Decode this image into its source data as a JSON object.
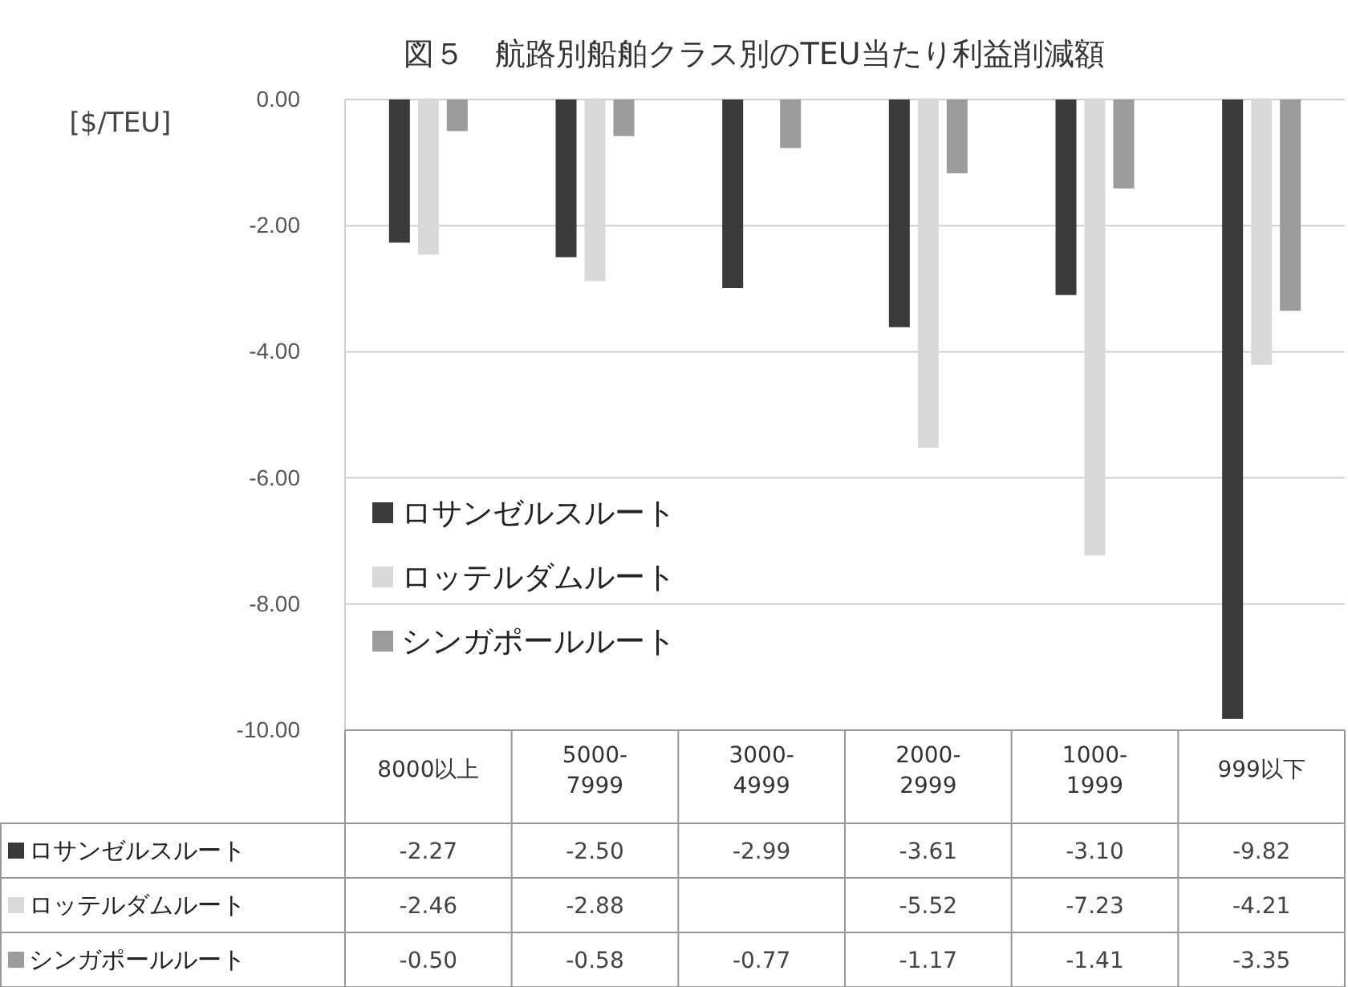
{
  "chart_data": {
    "type": "bar",
    "title": "図５　航路別船舶クラス別のTEU当たり利益削減額",
    "ylabel": "[$/TEU]",
    "categories": [
      "8000以上",
      "5000-7999",
      "3000-4999",
      "2000-2999",
      "1000-1999",
      "999以下"
    ],
    "series": [
      {
        "name": "ロサンゼルスルート",
        "color": "#3a3a3a",
        "values": [
          -2.27,
          -2.5,
          -2.99,
          -3.61,
          -3.1,
          -9.82
        ],
        "value_labels": [
          "-2.27",
          "-2.50",
          "-2.99",
          "-3.61",
          "-3.10",
          "-9.82"
        ]
      },
      {
        "name": "ロッテルダムルート",
        "color": "#d9d9d9",
        "values": [
          -2.46,
          -2.88,
          null,
          -5.52,
          -7.23,
          -4.21
        ],
        "value_labels": [
          "-2.46",
          "-2.88",
          null,
          "-5.52",
          "-7.23",
          "-4.21"
        ]
      },
      {
        "name": "シンガポールルート",
        "color": "#9c9c9c",
        "values": [
          -0.5,
          -0.58,
          -0.77,
          -1.17,
          -1.41,
          -3.35
        ],
        "value_labels": [
          "-0.50",
          "-0.58",
          "-0.77",
          "-1.17",
          "-1.41",
          "-3.35"
        ]
      }
    ],
    "ylim": [
      -10,
      0
    ],
    "yticks": [
      {
        "value": 0,
        "label": "0.00"
      },
      {
        "value": -2,
        "label": "-2.00"
      },
      {
        "value": -4,
        "label": "-4.00"
      },
      {
        "value": -6,
        "label": "-6.00"
      },
      {
        "value": -8,
        "label": "-8.00"
      },
      {
        "value": -10,
        "label": "-10.00"
      }
    ],
    "grid": "y",
    "legend": "bottom left"
  }
}
